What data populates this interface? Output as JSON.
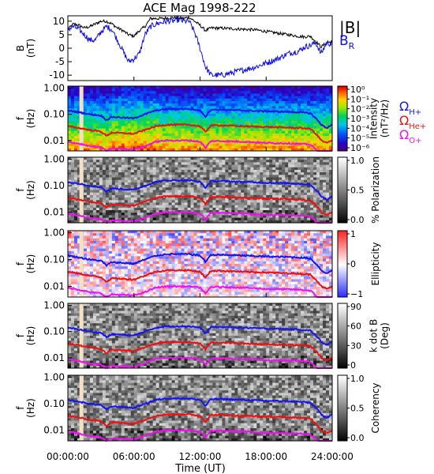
{
  "title": "ACE Mag 1998-222",
  "x_axis": {
    "label": "Time (UT)",
    "ticks": [
      "00:00:00",
      "06:00:00",
      "12:00:00",
      "18:00:00",
      "24:00:00"
    ],
    "range_hours": [
      0,
      24
    ]
  },
  "legend": {
    "b_mag": "|B|",
    "b_r_main": "B",
    "b_r_sub": "R",
    "omega": "Ω",
    "h_sub": "H+",
    "he_sub": "He+",
    "o_sub": "O+"
  },
  "colors": {
    "b_mag": "#000000",
    "b_r": "#1010e0",
    "gyro_h": "#1515f0",
    "gyro_he": "#ee1010",
    "gyro_o": "#ee10ee",
    "data_gap": "#f2e1c4"
  },
  "panels": [
    {
      "type": "line",
      "ylabel_main": "B",
      "ylabel_unit": "(nT)",
      "yticks": [
        "10",
        "5",
        "0",
        "-5",
        "-10"
      ],
      "ylim": [
        -12,
        12
      ]
    },
    {
      "type": "heatmap",
      "colormap": "rainbow",
      "ylabel_main": "f",
      "ylabel_unit": "(Hz)",
      "yticks": [
        "1.00",
        "0.10",
        "0.01"
      ],
      "cbar_label_1": "Intensity",
      "cbar_label_2": "(nT²/Hz)",
      "cbar_ticks": [
        "10⁰",
        "10⁻¹",
        "10⁻²",
        "10⁻³",
        "10⁻⁴",
        "10⁻⁵",
        "10⁻⁶"
      ]
    },
    {
      "type": "heatmap",
      "colormap": "gray",
      "ylabel_main": "f",
      "ylabel_unit": "(Hz)",
      "yticks": [
        "1.00",
        "0.10",
        "0.01"
      ],
      "cbar_label_1": "% Polarization",
      "cbar_label_2": "",
      "cbar_ticks": [
        "1.0",
        "0.5",
        "0.0"
      ]
    },
    {
      "type": "heatmap",
      "colormap": "bwr",
      "ylabel_main": "f",
      "ylabel_unit": "(Hz)",
      "yticks": [
        "1.00",
        "0.10",
        "0.01"
      ],
      "cbar_label_1": "Ellipticity",
      "cbar_label_2": "",
      "cbar_ticks": [
        "1",
        "0",
        "−1"
      ]
    },
    {
      "type": "heatmap",
      "colormap": "gray",
      "ylabel_main": "f",
      "ylabel_unit": "(Hz)",
      "yticks": [
        "1.00",
        "0.10",
        "0.01"
      ],
      "cbar_label_1": "k dot B",
      "cbar_label_2": "(Deg)",
      "cbar_ticks": [
        "90",
        "60",
        "30",
        "0"
      ]
    },
    {
      "type": "heatmap",
      "colormap": "gray",
      "ylabel_main": "f",
      "ylabel_unit": "(Hz)",
      "yticks": [
        "1.00",
        "0.10",
        "0.01"
      ],
      "cbar_label_1": "Coherency",
      "cbar_label_2": "",
      "cbar_ticks": [
        "1.0",
        "0.5",
        "0.0"
      ]
    }
  ],
  "chart_data": [
    {
      "type": "line",
      "xlabel": "Time (UT)",
      "ylabel": "B (nT)",
      "x_unit": "hours",
      "ylim": [
        -12,
        12
      ],
      "series": [
        {
          "name": "|B|",
          "x": [
            0,
            0.5,
            1,
            1.5,
            2,
            2.5,
            3,
            3.5,
            4,
            4.5,
            5,
            5.5,
            6,
            6.5,
            7,
            7.5,
            8,
            8.5,
            9,
            9.5,
            10,
            10.5,
            11,
            11.5,
            12,
            12.5,
            13,
            14,
            15,
            16,
            17,
            18,
            19,
            20,
            21,
            21.5,
            22,
            22.5,
            23,
            23.5,
            24
          ],
          "values": [
            7,
            9,
            8.5,
            7.5,
            8,
            9,
            10,
            10,
            9,
            7.5,
            6.5,
            5,
            4.5,
            6.5,
            8,
            11,
            11,
            11,
            11.2,
            11.3,
            11.3,
            11,
            11.5,
            10,
            8.5,
            6.5,
            7.5,
            7.4,
            7.2,
            7,
            6.8,
            6.2,
            5.6,
            5,
            4.4,
            4.2,
            4.5,
            2.5,
            0.5,
            2,
            2.5
          ]
        },
        {
          "name": "B_R",
          "x": [
            0,
            0.5,
            1,
            1.5,
            2,
            2.5,
            3,
            3.5,
            4,
            4.5,
            5,
            5.5,
            6,
            6.5,
            7,
            7.5,
            8,
            8.5,
            9,
            9.5,
            10,
            10.5,
            11,
            11.5,
            12,
            12.5,
            13,
            14,
            15,
            16,
            17,
            18,
            19,
            20,
            21,
            21.5,
            22,
            22.5,
            23,
            23.5,
            24
          ],
          "values": [
            7,
            8,
            7,
            5,
            3,
            3,
            6,
            8,
            7,
            3,
            -1,
            -5,
            -4,
            -2,
            5,
            8,
            9,
            9.5,
            10,
            10,
            10.5,
            10,
            10,
            6,
            0,
            -7,
            -10,
            -10,
            -9,
            -8,
            -7,
            -5.5,
            -4,
            -2,
            -1,
            0.5,
            1,
            2,
            -2,
            2,
            1.5
          ]
        }
      ]
    },
    {
      "type": "heatmap",
      "title": "",
      "ylabel": "f (Hz)",
      "y_scale": "log",
      "ylim": [
        0.004,
        1.2
      ],
      "overlays": [
        {
          "name": "Ω_H+",
          "x": [
            0,
            1,
            2,
            3,
            3.5,
            4,
            5,
            6,
            7,
            8,
            9,
            10,
            11,
            12,
            12.5,
            13,
            14,
            16,
            18,
            20,
            21,
            22,
            22.5,
            23,
            23.5,
            24
          ],
          "values": [
            0.14,
            0.12,
            0.1,
            0.09,
            0.06,
            0.08,
            0.075,
            0.07,
            0.1,
            0.14,
            0.16,
            0.16,
            0.16,
            0.14,
            0.08,
            0.15,
            0.15,
            0.14,
            0.13,
            0.125,
            0.12,
            0.11,
            0.07,
            0.04,
            0.03,
            0.04
          ]
        },
        {
          "name": "Ω_He+",
          "x": [
            0,
            1,
            2,
            3,
            3.5,
            4,
            5,
            6,
            7,
            8,
            9,
            10,
            11,
            12,
            12.5,
            13,
            14,
            16,
            18,
            20,
            21,
            22,
            22.5,
            23,
            23.5,
            24
          ],
          "values": [
            0.035,
            0.03,
            0.025,
            0.022,
            0.015,
            0.02,
            0.019,
            0.018,
            0.025,
            0.035,
            0.04,
            0.04,
            0.04,
            0.035,
            0.02,
            0.038,
            0.038,
            0.035,
            0.033,
            0.031,
            0.03,
            0.028,
            0.018,
            0.01,
            0.008,
            0.01
          ]
        },
        {
          "name": "Ω_O+",
          "x": [
            0,
            1,
            2,
            3,
            3.5,
            4,
            5,
            6,
            7,
            8,
            9,
            10,
            11,
            12,
            12.5,
            13,
            14,
            16,
            18,
            20,
            21,
            22,
            22.5,
            23,
            23.5,
            24
          ],
          "values": [
            0.009,
            0.0075,
            0.006,
            0.0055,
            0.004,
            0.005,
            0.0048,
            0.0045,
            0.006,
            0.009,
            0.01,
            0.01,
            0.01,
            0.009,
            0.005,
            0.0095,
            0.0095,
            0.009,
            0.008,
            0.0078,
            0.0075,
            0.007,
            0.0045,
            0.0025,
            0.002,
            0.0025
          ]
        }
      ]
    }
  ]
}
